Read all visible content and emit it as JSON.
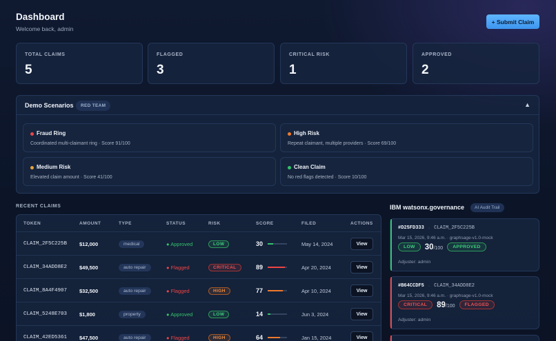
{
  "header": {
    "title": "Dashboard",
    "subtitle": "Welcome back, admin",
    "submit_label": "+ Submit Claim"
  },
  "stats": [
    {
      "label": "TOTAL CLAIMS",
      "value": "5"
    },
    {
      "label": "FLAGGED",
      "value": "3"
    },
    {
      "label": "CRITICAL RISK",
      "value": "1"
    },
    {
      "label": "APPROVED",
      "value": "2"
    }
  ],
  "demo": {
    "title": "Demo Scenarios",
    "badge": "RED TEAM",
    "toggle": "▲",
    "scenarios": [
      {
        "name": "Fraud Ring",
        "desc": "Coordinated multi-claimant ring · Score 91/100",
        "color": "#e5484d"
      },
      {
        "name": "High Risk",
        "desc": "Repeat claimant, multiple providers · Score 69/100",
        "color": "#f07a2c"
      },
      {
        "name": "Medium Risk",
        "desc": "Elevated claim amount · Score 41/100",
        "color": "#e8a33a"
      },
      {
        "name": "Clean Claim",
        "desc": "No red flags detected · Score 10/100",
        "color": "#30c46a"
      }
    ]
  },
  "recent": {
    "section_label": "RECENT CLAIMS",
    "columns": [
      "TOKEN",
      "AMOUNT",
      "TYPE",
      "STATUS",
      "RISK",
      "SCORE",
      "FILED",
      "ACTIONS"
    ],
    "rows": [
      {
        "token": "CLAIM_2F5C225B",
        "amount": "$12,000",
        "type": "medical",
        "status": "● Approved",
        "risk": "LOW",
        "score": "30",
        "score_pct": 30,
        "filed": "May 14, 2024",
        "action": "View"
      },
      {
        "token": "CLAIM_34ADD8E2",
        "amount": "$49,500",
        "type": "auto repair",
        "status": "● Flagged",
        "risk": "CRITICAL",
        "score": "89",
        "score_pct": 89,
        "filed": "Apr 20, 2024",
        "action": "View"
      },
      {
        "token": "CLAIM_8A4F4907",
        "amount": "$32,500",
        "type": "auto repair",
        "status": "● Flagged",
        "risk": "HIGH",
        "score": "77",
        "score_pct": 77,
        "filed": "Apr 10, 2024",
        "action": "View"
      },
      {
        "token": "CLAIM_5248E703",
        "amount": "$1,800",
        "type": "property",
        "status": "● Approved",
        "risk": "LOW",
        "score": "14",
        "score_pct": 14,
        "filed": "Jun 3, 2024",
        "action": "View"
      },
      {
        "token": "CLAIM_42ED5361",
        "amount": "$47,500",
        "type": "auto repair",
        "status": "● Flagged",
        "risk": "HIGH",
        "score": "64",
        "score_pct": 64,
        "filed": "Jan 15, 2024",
        "action": "View"
      }
    ]
  },
  "governance": {
    "title": "IBM watsonx.governance",
    "badge": "AI Audit Trail",
    "entries": [
      {
        "hash": "#D25FD333",
        "claim": "CLAIM_2F5C225B",
        "meta": "Mar 15, 2026, 9:46 a.m. · graphsage-v1.0-mock",
        "risk": "LOW",
        "score": "30",
        "out_of": "/100",
        "status": "APPROVED",
        "adjuster": "Adjuster: admin"
      },
      {
        "hash": "#B64CCDF5",
        "claim": "CLAIM_34ADD8E2",
        "meta": "Mar 15, 2026, 9:46 a.m. · graphsage-v1.0-mock",
        "risk": "CRITICAL",
        "score": "89",
        "out_of": "/100",
        "status": "FLAGGED",
        "adjuster": "Adjuster: admin"
      }
    ]
  },
  "colors": {
    "green": "#34c46c",
    "red": "#ef4444",
    "orange": "#f07a2c",
    "accent": "#4aa8f7"
  }
}
